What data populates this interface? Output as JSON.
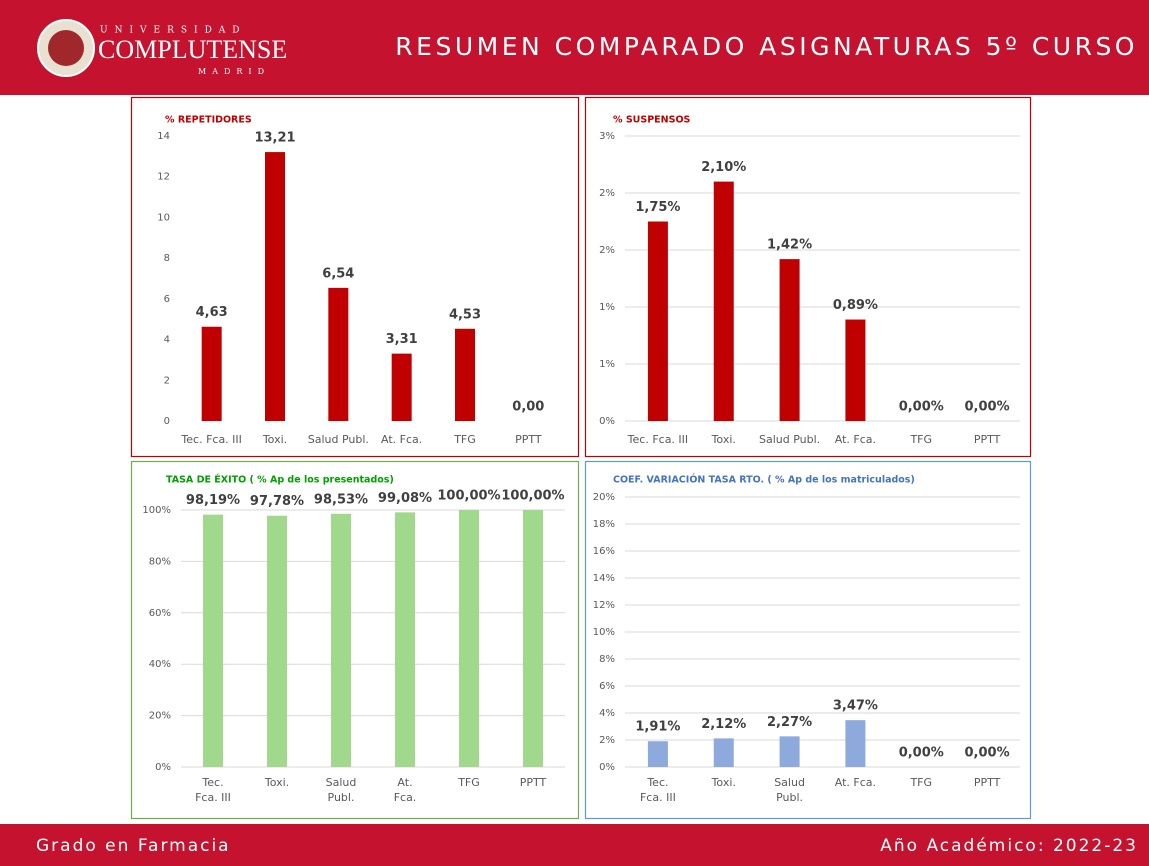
{
  "header": {
    "university_top": "UNIVERSIDAD",
    "university": "COMPLUTENSE",
    "university_bottom": "MADRID",
    "title": "RESUMEN COMPARADO ASIGNATURAS 5º CURSO"
  },
  "footer": {
    "left": "Grado en Farmacia",
    "right": "Año Académico: 2022-23"
  },
  "chart_data": [
    {
      "type": "bar",
      "title": "% REPETIDORES",
      "categories": [
        "Tec. Fca. III",
        "Toxi.",
        "Salud Publ.",
        "At. Fca.",
        "TFG",
        "PPTT"
      ],
      "values": [
        4.63,
        13.21,
        6.54,
        3.31,
        4.53,
        0.0
      ],
      "value_labels": [
        "4,63",
        "13,21",
        "6,54",
        "3,31",
        "4,53",
        "0,00"
      ],
      "color": "#c00000",
      "ylim": [
        0,
        14
      ],
      "yticks": [
        0,
        2,
        4,
        6,
        8,
        10,
        12,
        14
      ],
      "grid": false
    },
    {
      "type": "bar",
      "title": "% SUSPENSOS",
      "categories": [
        "Tec. Fca. III",
        "Toxi.",
        "Salud Publ.",
        "At. Fca.",
        "TFG",
        "PPTT"
      ],
      "values": [
        1.75,
        2.1,
        1.42,
        0.89,
        0.0,
        0.0
      ],
      "value_labels": [
        "1,75%",
        "2,10%",
        "1,42%",
        "0,89%",
        "0,00%",
        "0,00%"
      ],
      "color": "#c00000",
      "ylim": [
        0,
        2.5
      ],
      "yticks": [
        {
          "value": 0,
          "label": "0%"
        },
        {
          "value": 0.5,
          "label": "1%"
        },
        {
          "value": 1,
          "label": "1%"
        },
        {
          "value": 1.5,
          "label": "2%"
        },
        {
          "value": 2,
          "label": "2%"
        },
        {
          "value": 2.5,
          "label": "3%"
        }
      ],
      "grid": true
    },
    {
      "type": "bar",
      "title": "TASA DE ÉXITO ( % Ap de los presentados)",
      "categories": [
        "Tec. Fca. III",
        "Toxi.",
        "Salud Publ.",
        "At. Fca.",
        "TFG",
        "PPTT"
      ],
      "values": [
        98.19,
        97.78,
        98.53,
        99.08,
        100.0,
        100.0
      ],
      "value_labels": [
        "98,19%",
        "97,78%",
        "98,53%",
        "99,08%",
        "100,00%",
        "100,00%"
      ],
      "color": "#a0d88c",
      "ylim": [
        0,
        100
      ],
      "yticks": [
        {
          "value": 0,
          "label": "0%"
        },
        {
          "value": 20,
          "label": "20%"
        },
        {
          "value": 40,
          "label": "40%"
        },
        {
          "value": 60,
          "label": "60%"
        },
        {
          "value": 80,
          "label": "80%"
        },
        {
          "value": 100,
          "label": "100%"
        }
      ],
      "grid": true
    },
    {
      "type": "bar",
      "title": "COEF. VARIACIÓN TASA RTO. ( % Ap de los matriculados)",
      "categories": [
        "Tec. Fca. III",
        "Toxi.",
        "Salud Publ.",
        "At. Fca.",
        "TFG",
        "PPTT"
      ],
      "values": [
        1.91,
        2.12,
        2.27,
        3.47,
        0.0,
        0.0
      ],
      "value_labels": [
        "1,91%",
        "2,12%",
        "2,27%",
        "3,47%",
        "0,00%",
        "0,00%"
      ],
      "color": "#8eaadc",
      "ylim": [
        0,
        20
      ],
      "yticks": [
        {
          "value": 0,
          "label": "0%"
        },
        {
          "value": 2,
          "label": "2%"
        },
        {
          "value": 4,
          "label": "4%"
        },
        {
          "value": 6,
          "label": "6%"
        },
        {
          "value": 8,
          "label": "8%"
        },
        {
          "value": 10,
          "label": "10%"
        },
        {
          "value": 12,
          "label": "12%"
        },
        {
          "value": 14,
          "label": "14%"
        },
        {
          "value": 16,
          "label": "16%"
        },
        {
          "value": 18,
          "label": "18%"
        },
        {
          "value": 20,
          "label": "20%"
        }
      ],
      "grid": true
    }
  ]
}
